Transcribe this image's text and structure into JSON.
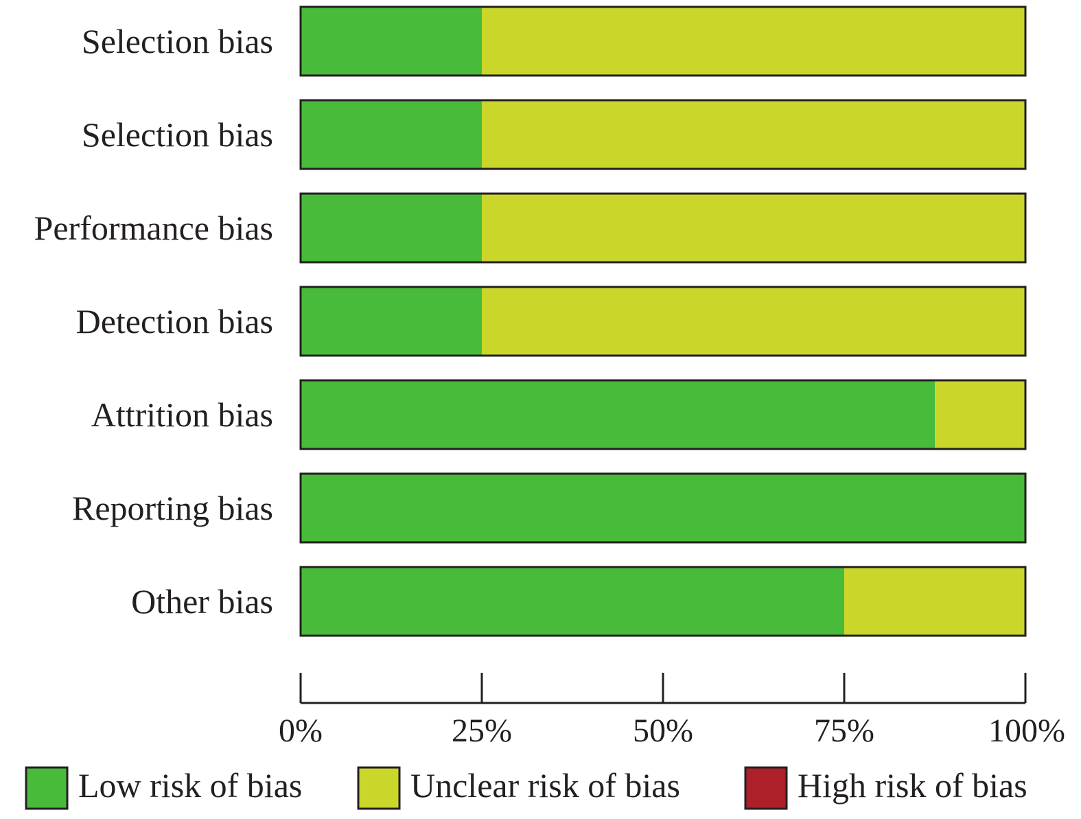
{
  "chart_data": {
    "type": "bar",
    "orientation": "horizontal",
    "stacked": true,
    "categories": [
      "Selection bias",
      "Selection bias",
      "Performance bias",
      "Detection bias",
      "Attrition bias",
      "Reporting bias",
      "Other bias"
    ],
    "series": [
      {
        "name": "Low risk of bias",
        "color": "#48bb3a",
        "values": [
          25,
          25,
          25,
          25,
          87.5,
          100,
          75
        ]
      },
      {
        "name": "Unclear risk of bias",
        "color": "#cbd62a",
        "values": [
          75,
          75,
          75,
          75,
          12.5,
          0,
          25
        ]
      },
      {
        "name": "High risk of bias",
        "color": "#ad2029",
        "values": [
          0,
          0,
          0,
          0,
          0,
          0,
          0
        ]
      }
    ],
    "xlim": [
      0,
      100
    ],
    "xticks": [
      0,
      25,
      50,
      75,
      100
    ],
    "xtick_labels": [
      "0%",
      "25%",
      "50%",
      "75%",
      "100%"
    ],
    "legend_position": "bottom",
    "grid": false,
    "title": "",
    "xlabel": "",
    "ylabel": ""
  }
}
